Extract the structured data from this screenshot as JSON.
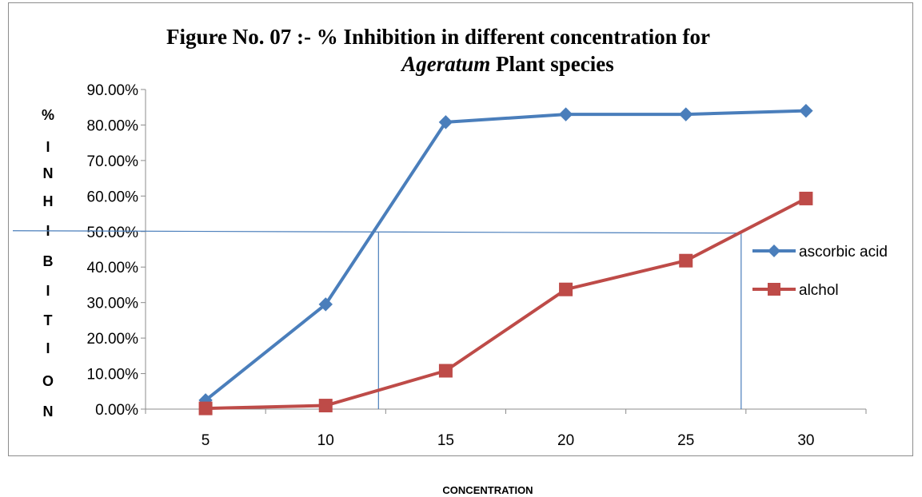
{
  "chart_data": {
    "type": "line",
    "title_line1": "Figure  No. 07 :- %  Inhibition  in different concentration for",
    "title_line2_italic": "Ageratum",
    "title_line2_rest": " Plant species",
    "ylabel_letters": [
      "%",
      "I",
      "N",
      "H",
      "I",
      "B",
      "I",
      "T",
      "I",
      "O",
      "N"
    ],
    "xlabel": "CONCENTRATION",
    "categories": [
      "5",
      "10",
      "15",
      "20",
      "25",
      "30"
    ],
    "yticks": [
      "0.00%",
      "10.00%",
      "20.00%",
      "30.00%",
      "40.00%",
      "50.00%",
      "60.00%",
      "70.00%",
      "80.00%",
      "90.00%"
    ],
    "ylim": [
      0,
      90
    ],
    "series": [
      {
        "name": "ascorbic acid",
        "color": "#4a7ebb",
        "marker": "diamond",
        "values": [
          2.5,
          29.5,
          80.8,
          83.0,
          83.0,
          84.0
        ]
      },
      {
        "name": "alchol",
        "color": "#be4b48",
        "marker": "square",
        "values": [
          0.2,
          1.0,
          10.8,
          33.7,
          41.8,
          59.3
        ]
      }
    ],
    "reference_lines": {
      "color": "#4a7ebb",
      "y": 50,
      "x_crossings": [
        12.2,
        27.3
      ]
    },
    "legend_position": "right",
    "grid": false
  }
}
